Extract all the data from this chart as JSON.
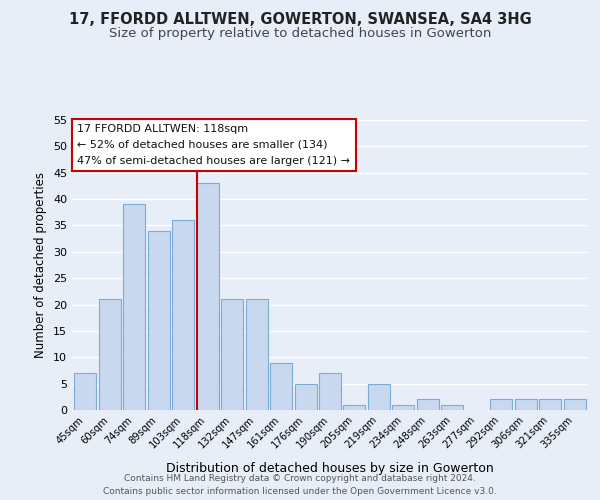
{
  "title1": "17, FFORDD ALLTWEN, GOWERTON, SWANSEA, SA4 3HG",
  "title2": "Size of property relative to detached houses in Gowerton",
  "xlabel": "Distribution of detached houses by size in Gowerton",
  "ylabel": "Number of detached properties",
  "bar_labels": [
    "45sqm",
    "60sqm",
    "74sqm",
    "89sqm",
    "103sqm",
    "118sqm",
    "132sqm",
    "147sqm",
    "161sqm",
    "176sqm",
    "190sqm",
    "205sqm",
    "219sqm",
    "234sqm",
    "248sqm",
    "263sqm",
    "277sqm",
    "292sqm",
    "306sqm",
    "321sqm",
    "335sqm"
  ],
  "bar_values": [
    7,
    21,
    39,
    34,
    36,
    43,
    21,
    21,
    9,
    5,
    7,
    1,
    5,
    1,
    2,
    1,
    0,
    2,
    2,
    2,
    2
  ],
  "bar_color": "#c8d8ee",
  "bar_edge_color": "#7aadd4",
  "highlight_index": 5,
  "red_line_color": "#cc0000",
  "ylim": [
    0,
    55
  ],
  "yticks": [
    0,
    5,
    10,
    15,
    20,
    25,
    30,
    35,
    40,
    45,
    50,
    55
  ],
  "annotation_title": "17 FFORDD ALLTWEN: 118sqm",
  "annotation_line1": "← 52% of detached houses are smaller (134)",
  "annotation_line2": "47% of semi-detached houses are larger (121) →",
  "annotation_box_color": "#ffffff",
  "annotation_border_color": "#cc0000",
  "footer1": "Contains HM Land Registry data © Crown copyright and database right 2024.",
  "footer2": "Contains public sector information licensed under the Open Government Licence v3.0.",
  "bg_color": "#e8eef8",
  "grid_color": "#ffffff",
  "title1_fontsize": 10.5,
  "title2_fontsize": 9.5
}
